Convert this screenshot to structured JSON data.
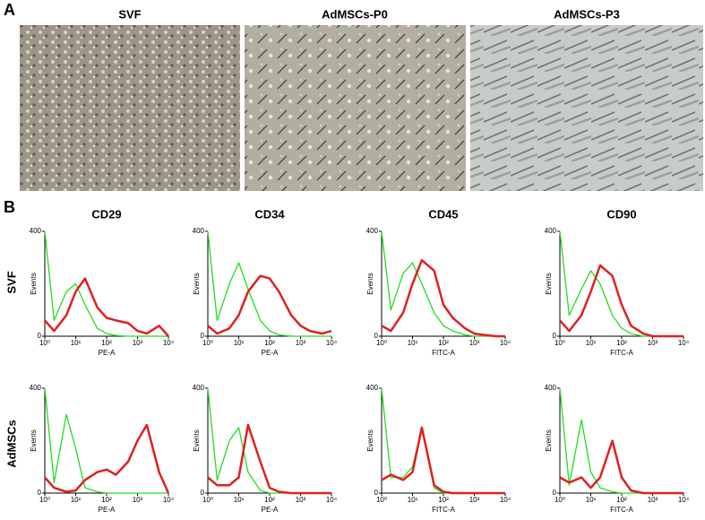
{
  "panel_labels": [
    "A",
    "B"
  ],
  "image_titles": [
    "SVF",
    "AdMSCs-P0",
    "AdMSCs-P3"
  ],
  "row_labels": [
    "SVF",
    "AdMSCs"
  ],
  "chart_data": [
    {
      "type": "line",
      "title": "CD29",
      "x_label": "PE-A",
      "y_label": "Events",
      "log_x": true,
      "x": [
        1,
        2,
        5,
        10,
        20,
        50,
        100,
        200,
        500,
        1000,
        2000,
        5000,
        10000
      ],
      "xlim": [
        1,
        10000
      ],
      "ylim": [
        0,
        400
      ],
      "xticks": [
        {
          "value": 1,
          "label": "10⁰"
        },
        {
          "value": 10,
          "label": "10¹"
        },
        {
          "value": 100,
          "label": "10²"
        },
        {
          "value": 1000,
          "label": "10³"
        },
        {
          "value": 10000,
          "label": "10⁴"
        }
      ],
      "yticks": [
        0,
        400
      ],
      "series": [
        {
          "color": "#22dd22",
          "values": [
            400,
            60,
            170,
            200,
            120,
            30,
            10,
            3,
            0,
            0,
            0,
            0,
            0
          ]
        },
        {
          "color": "#e02020",
          "values": [
            60,
            20,
            80,
            170,
            220,
            110,
            70,
            60,
            50,
            20,
            10,
            40,
            0
          ]
        }
      ]
    },
    {
      "type": "line",
      "title": "CD34",
      "x_label": "PE-A",
      "y_label": "Events",
      "log_x": true,
      "x": [
        1,
        2,
        5,
        10,
        20,
        50,
        100,
        200,
        500,
        1000,
        2000,
        5000,
        10000
      ],
      "xlim": [
        1,
        10000
      ],
      "ylim": [
        0,
        400
      ],
      "xticks": [
        {
          "value": 1,
          "label": "10⁰"
        },
        {
          "value": 10,
          "label": "10¹"
        },
        {
          "value": 100,
          "label": "10²"
        },
        {
          "value": 1000,
          "label": "10³"
        },
        {
          "value": 10000,
          "label": "10⁴"
        }
      ],
      "yticks": [
        0,
        400
      ],
      "series": [
        {
          "color": "#22dd22",
          "values": [
            400,
            60,
            200,
            280,
            180,
            60,
            20,
            5,
            0,
            0,
            0,
            0,
            0
          ]
        },
        {
          "color": "#e02020",
          "values": [
            40,
            10,
            30,
            80,
            170,
            230,
            220,
            170,
            80,
            40,
            20,
            10,
            20
          ]
        }
      ]
    },
    {
      "type": "line",
      "title": "CD45",
      "x_label": "FITC-A",
      "y_label": "Events",
      "log_x": true,
      "x": [
        1,
        2,
        5,
        10,
        20,
        50,
        100,
        200,
        500,
        1000,
        2000,
        5000,
        10000
      ],
      "xlim": [
        1,
        10000
      ],
      "ylim": [
        0,
        400
      ],
      "xticks": [
        {
          "value": 1,
          "label": "10⁰"
        },
        {
          "value": 10,
          "label": "10¹"
        },
        {
          "value": 100,
          "label": "10²"
        },
        {
          "value": 1000,
          "label": "10³"
        },
        {
          "value": 10000,
          "label": "10⁴"
        }
      ],
      "yticks": [
        0,
        400
      ],
      "series": [
        {
          "color": "#22dd22",
          "values": [
            400,
            100,
            240,
            280,
            200,
            90,
            40,
            20,
            5,
            0,
            0,
            0,
            0
          ]
        },
        {
          "color": "#e02020",
          "values": [
            40,
            20,
            90,
            200,
            290,
            250,
            120,
            70,
            30,
            10,
            5,
            0,
            0
          ]
        }
      ]
    },
    {
      "type": "line",
      "title": "CD90",
      "x_label": "FITC-A",
      "y_label": "Events",
      "log_x": true,
      "x": [
        1,
        2,
        5,
        10,
        20,
        50,
        100,
        200,
        500,
        1000,
        2000,
        5000,
        10000
      ],
      "xlim": [
        1,
        10000
      ],
      "ylim": [
        0,
        400
      ],
      "xticks": [
        {
          "value": 1,
          "label": "10⁰"
        },
        {
          "value": 10,
          "label": "10¹"
        },
        {
          "value": 100,
          "label": "10²"
        },
        {
          "value": 1000,
          "label": "10³"
        },
        {
          "value": 10000,
          "label": "10⁴"
        }
      ],
      "yticks": [
        0,
        400
      ],
      "series": [
        {
          "color": "#22dd22",
          "values": [
            400,
            80,
            180,
            250,
            200,
            80,
            30,
            10,
            0,
            0,
            0,
            0,
            0
          ]
        },
        {
          "color": "#e02020",
          "values": [
            60,
            20,
            80,
            170,
            270,
            230,
            120,
            40,
            10,
            0,
            0,
            0,
            0
          ]
        }
      ]
    },
    {
      "type": "line",
      "x_label": "PE-A",
      "y_label": "Events",
      "log_x": true,
      "x": [
        1,
        2,
        5,
        10,
        20,
        50,
        100,
        200,
        500,
        1000,
        2000,
        5000,
        10000
      ],
      "xlim": [
        1,
        10000
      ],
      "ylim": [
        0,
        400
      ],
      "xticks": [
        {
          "value": 1,
          "label": "10⁰"
        },
        {
          "value": 10,
          "label": "10¹"
        },
        {
          "value": 100,
          "label": "10²"
        },
        {
          "value": 1000,
          "label": "10³"
        },
        {
          "value": 10000,
          "label": "10⁴"
        }
      ],
      "yticks": [
        0,
        400
      ],
      "series": [
        {
          "color": "#22dd22",
          "values": [
            400,
            40,
            300,
            170,
            20,
            5,
            0,
            0,
            0,
            0,
            0,
            0,
            0
          ]
        },
        {
          "color": "#e02020",
          "values": [
            60,
            20,
            5,
            10,
            50,
            80,
            90,
            70,
            120,
            200,
            260,
            80,
            0
          ]
        }
      ]
    },
    {
      "type": "line",
      "x_label": "PE-A",
      "y_label": "Events",
      "log_x": true,
      "x": [
        1,
        2,
        5,
        10,
        20,
        50,
        100,
        200,
        500,
        1000,
        2000,
        5000,
        10000
      ],
      "xlim": [
        1,
        10000
      ],
      "ylim": [
        0,
        400
      ],
      "xticks": [
        {
          "value": 1,
          "label": "10⁰"
        },
        {
          "value": 10,
          "label": "10¹"
        },
        {
          "value": 100,
          "label": "10²"
        },
        {
          "value": 1000,
          "label": "10³"
        },
        {
          "value": 10000,
          "label": "10⁴"
        }
      ],
      "yticks": [
        0,
        400
      ],
      "series": [
        {
          "color": "#22dd22",
          "values": [
            400,
            50,
            200,
            250,
            80,
            10,
            0,
            0,
            0,
            0,
            0,
            0,
            0
          ]
        },
        {
          "color": "#e02020",
          "values": [
            60,
            30,
            30,
            60,
            260,
            120,
            20,
            5,
            0,
            0,
            0,
            0,
            0
          ]
        }
      ]
    },
    {
      "type": "line",
      "x_label": "FITC-A",
      "y_label": "Events",
      "log_x": true,
      "x": [
        1,
        2,
        5,
        10,
        20,
        50,
        100,
        200,
        500,
        1000,
        2000,
        5000,
        10000
      ],
      "xlim": [
        1,
        10000
      ],
      "ylim": [
        0,
        400
      ],
      "xticks": [
        {
          "value": 1,
          "label": "10⁰"
        },
        {
          "value": 10,
          "label": "10¹"
        },
        {
          "value": 100,
          "label": "10²"
        },
        {
          "value": 1000,
          "label": "10³"
        },
        {
          "value": 10000,
          "label": "10⁴"
        }
      ],
      "yticks": [
        0,
        400
      ],
      "series": [
        {
          "color": "#22dd22",
          "values": [
            400,
            60,
            60,
            100,
            250,
            20,
            0,
            0,
            0,
            0,
            0,
            0,
            0
          ]
        },
        {
          "color": "#e02020",
          "values": [
            50,
            70,
            50,
            80,
            250,
            30,
            5,
            0,
            0,
            0,
            0,
            0,
            0
          ]
        }
      ]
    },
    {
      "type": "line",
      "x_label": "FITC-A",
      "y_label": "Events",
      "log_x": true,
      "x": [
        1,
        2,
        5,
        10,
        20,
        50,
        100,
        200,
        500,
        1000,
        2000,
        5000,
        10000
      ],
      "xlim": [
        1,
        10000
      ],
      "ylim": [
        0,
        400
      ],
      "xticks": [
        {
          "value": 1,
          "label": "10⁰"
        },
        {
          "value": 10,
          "label": "10¹"
        },
        {
          "value": 100,
          "label": "10²"
        },
        {
          "value": 1000,
          "label": "10³"
        },
        {
          "value": 10000,
          "label": "10⁴"
        }
      ],
      "yticks": [
        0,
        400
      ],
      "series": [
        {
          "color": "#22dd22",
          "values": [
            400,
            30,
            280,
            80,
            20,
            5,
            0,
            0,
            0,
            0,
            0,
            0,
            0
          ]
        },
        {
          "color": "#e02020",
          "values": [
            60,
            40,
            60,
            20,
            60,
            200,
            60,
            10,
            0,
            0,
            0,
            0,
            0
          ]
        }
      ]
    }
  ]
}
